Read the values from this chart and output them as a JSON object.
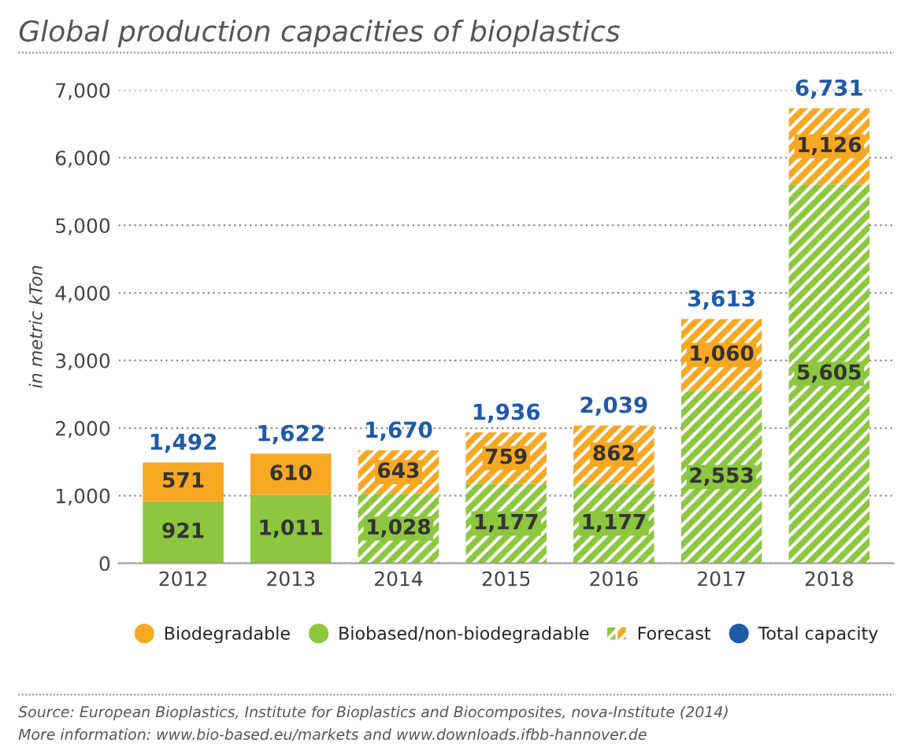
{
  "chart_data": {
    "type": "bar",
    "title": "Global production capacities of bioplastics",
    "ylabel": "in metric kTon",
    "stacked": true,
    "categories": [
      "2012",
      "2013",
      "2014",
      "2015",
      "2016",
      "2017",
      "2018"
    ],
    "series": [
      {
        "name": "Biobased/non-biodegradable",
        "color": "#8dc63f",
        "values": [
          921,
          1011,
          null,
          null,
          null,
          null,
          null
        ],
        "value_labels": [
          "921",
          "1,011",
          null,
          null,
          null,
          null,
          null
        ]
      },
      {
        "color": "#8dc63f",
        "line_style": "dashed",
        "values": [
          null,
          null,
          1028,
          1177,
          1177,
          2553,
          5605
        ],
        "value_labels": [
          null,
          null,
          "1,028",
          "1,177",
          "1,177",
          "2,553",
          "5,605"
        ]
      },
      {
        "name": "Biodegradable",
        "color": "#f7a823",
        "values": [
          571,
          610,
          null,
          null,
          null,
          null,
          null
        ],
        "value_labels": [
          "571",
          "610",
          null,
          null,
          null,
          null,
          null
        ]
      },
      {
        "name": "Forecast",
        "color": "#f7a823",
        "line_style": "dashed",
        "values": [
          null,
          null,
          643,
          759,
          862,
          1060,
          1126
        ],
        "value_labels": [
          null,
          null,
          "643",
          "759",
          "862",
          "1,060",
          "1,126"
        ]
      }
    ],
    "totals": [
      "1,492",
      "1,622",
      "1,670",
      "1,936",
      "2,039",
      "3,613",
      "6,731"
    ],
    "ylim": [
      0,
      7000
    ],
    "yticks": [
      0,
      {
        "value": 1000,
        "label": "1,000"
      },
      {
        "value": 2000,
        "label": "2,000"
      },
      {
        "value": 3000,
        "label": "3,000"
      },
      {
        "value": 4000,
        "label": "4,000"
      },
      {
        "value": 5000,
        "label": "5,000"
      },
      {
        "value": 6000,
        "label": "6,000"
      },
      {
        "value": 7000,
        "label": "7,000"
      }
    ],
    "grid": "y",
    "legend": "bottom",
    "annotations": [
      "Total capacity",
      "Source: European Bioplastics, Institute for Bioplastics and Biocomposites, nova-Institute (2014)",
      "More information: www.bio-based.eu/markets and www.downloads.ifbb-hannover.de"
    ]
  }
}
